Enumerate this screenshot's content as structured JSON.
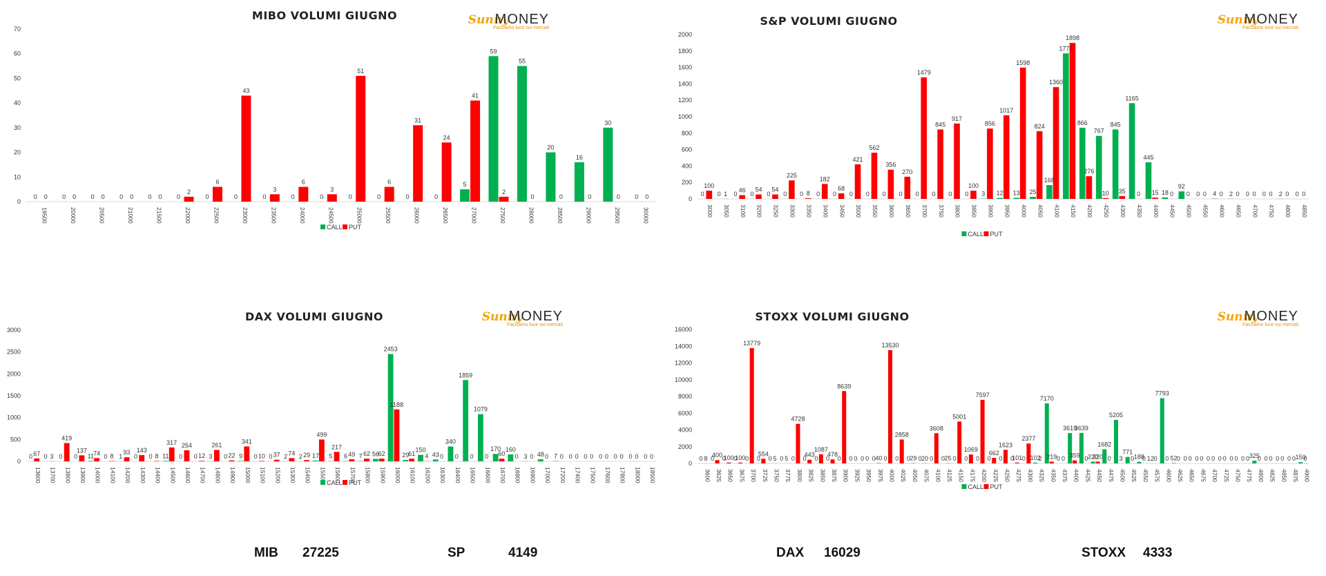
{
  "colors": {
    "call": "#00B050",
    "put": "#FF0000"
  },
  "logo": {
    "word1": "Sunny",
    "word2": "MONEY",
    "tagline": "Facciamo luce sui mercati"
  },
  "legend": {
    "call": "CALL",
    "put": "PUT"
  },
  "footer": [
    {
      "label": "MIB",
      "value": "27225"
    },
    {
      "label": "SP",
      "value": "4149"
    },
    {
      "label": "DAX",
      "value": "16029"
    },
    {
      "label": "STOXX",
      "value": "4333"
    }
  ],
  "chart_data": [
    {
      "type": "bar",
      "title": "MIBO VOLUMI GIUGNO",
      "ylim": [
        0,
        70
      ],
      "yticks": [
        0,
        10,
        20,
        30,
        40,
        50,
        60,
        70
      ],
      "xlabel": "",
      "ylabel": "",
      "grid": false,
      "legend": "bottom",
      "categories": [
        "19500",
        "20000",
        "20500",
        "21000",
        "21500",
        "22000",
        "22500",
        "23000",
        "23500",
        "24000",
        "24500",
        "25000",
        "25500",
        "26000",
        "26500",
        "27000",
        "27500",
        "28000",
        "28500",
        "29000",
        "29500",
        "30000"
      ],
      "series": [
        {
          "name": "CALL",
          "values": [
            0,
            0,
            0,
            0,
            0,
            0,
            0,
            0,
            0,
            0,
            0,
            0,
            0,
            0,
            0,
            5,
            59,
            55,
            20,
            16,
            30,
            0
          ]
        },
        {
          "name": "PUT",
          "values": [
            0,
            0,
            0,
            0,
            0,
            2,
            6,
            43,
            3,
            6,
            3,
            51,
            6,
            31,
            24,
            41,
            2,
            0,
            0,
            0,
            0,
            0
          ]
        }
      ]
    },
    {
      "type": "bar",
      "title": "S&P VOLUMI GIUGNO",
      "ylim": [
        0,
        2000
      ],
      "yticks": [
        0,
        200,
        400,
        600,
        800,
        1000,
        1200,
        1400,
        1600,
        1800,
        2000
      ],
      "xlabel": "",
      "ylabel": "",
      "grid": false,
      "legend": "bottom",
      "categories": [
        "3000",
        "3050",
        "3100",
        "3200",
        "3250",
        "3300",
        "3350",
        "3400",
        "3450",
        "3500",
        "3550",
        "3600",
        "3650",
        "3700",
        "3750",
        "3800",
        "3850",
        "3900",
        "3950",
        "4000",
        "4050",
        "4100",
        "4150",
        "4200",
        "4250",
        "4300",
        "4350",
        "4400",
        "4450",
        "4500",
        "4550",
        "4600",
        "4650",
        "4700",
        "4750",
        "4800",
        "4850"
      ],
      "series": [
        {
          "name": "CALL",
          "values": [
            0,
            0,
            0,
            0,
            0,
            0,
            0,
            0,
            0,
            0,
            0,
            0,
            0,
            0,
            0,
            0,
            0,
            3,
            12,
            13,
            25,
            168,
            1771,
            866,
            767,
            845,
            1165,
            445,
            18,
            92,
            0,
            4,
            2,
            0,
            0,
            2,
            0
          ]
        },
        {
          "name": "PUT",
          "values": [
            100,
            1,
            46,
            54,
            54,
            225,
            8,
            182,
            68,
            421,
            562,
            356,
            270,
            1479,
            845,
            917,
            100,
            856,
            1017,
            1598,
            824,
            1360,
            1898,
            276,
            10,
            35,
            0,
            15,
            0,
            0,
            0,
            0,
            0,
            0,
            0,
            0,
            0
          ]
        }
      ]
    },
    {
      "type": "bar",
      "title": "DAX VOLUMI GIUGNO",
      "ylim": [
        0,
        3000
      ],
      "yticks": [
        0,
        500,
        1000,
        1500,
        2000,
        2500,
        3000
      ],
      "xlabel": "",
      "ylabel": "",
      "grid": false,
      "legend": "bottom",
      "categories": [
        "13600",
        "13700",
        "13800",
        "13900",
        "14000",
        "14100",
        "14200",
        "14300",
        "14400",
        "14500",
        "14600",
        "14700",
        "14800",
        "14900",
        "15000",
        "15100",
        "15200",
        "15300",
        "15400",
        "15500",
        "15600",
        "15700",
        "15800",
        "15900",
        "16000",
        "16100",
        "16200",
        "16300",
        "16400",
        "16500",
        "16600",
        "16700",
        "16800",
        "16900",
        "17000",
        "17200",
        "17400",
        "17500",
        "17600",
        "17800",
        "18000",
        "18500"
      ],
      "series": [
        {
          "name": "CALL",
          "values": [
            0,
            0,
            0,
            0,
            11,
            0,
            1,
            0,
            0,
            11,
            0,
            0,
            3,
            0,
            9,
            0,
            0,
            2,
            2,
            17,
            5,
            6,
            7,
            56,
            2453,
            29,
            150,
            43,
            340,
            1859,
            1079,
            170,
            160,
            3,
            48,
            7,
            0,
            0,
            0,
            0,
            0,
            0
          ]
        },
        {
          "name": "PUT",
          "values": [
            67,
            3,
            419,
            137,
            74,
            8,
            93,
            143,
            8,
            317,
            254,
            12,
            261,
            22,
            341,
            10,
            37,
            74,
            29,
            499,
            217,
            49,
            62,
            62,
            1188,
            61,
            4,
            0,
            0,
            0,
            0,
            60,
            0,
            0,
            0,
            0,
            0,
            0,
            0,
            0,
            0,
            0
          ]
        }
      ]
    },
    {
      "type": "bar",
      "title": "STOXX VOLUMI GIUGNO",
      "ylim": [
        0,
        16000
      ],
      "yticks": [
        0,
        2000,
        4000,
        6000,
        8000,
        10000,
        12000,
        14000,
        16000
      ],
      "xlabel": "",
      "ylabel": "",
      "grid": false,
      "legend": "bottom",
      "categories": [
        "3600",
        "3625",
        "3650",
        "3675",
        "3700",
        "3725",
        "3750",
        "3775",
        "3800",
        "3825",
        "3850",
        "3875",
        "3900",
        "3925",
        "3950",
        "3975",
        "4000",
        "4025",
        "4050",
        "4075",
        "4100",
        "4125",
        "4150",
        "4175",
        "4200",
        "4225",
        "4250",
        "4275",
        "4300",
        "4325",
        "4350",
        "4375",
        "4400",
        "4425",
        "4450",
        "4475",
        "4500",
        "4525",
        "4550",
        "4575",
        "4600",
        "4625",
        "4650",
        "4675",
        "4700",
        "4725",
        "4750",
        "4775",
        "4800",
        "4825",
        "4850",
        "4875",
        "4900"
      ],
      "series": [
        {
          "name": "CALL",
          "values": [
            0,
            0,
            0,
            0,
            0,
            0,
            0,
            0,
            0,
            0,
            0,
            0,
            0,
            0,
            0,
            0,
            0,
            0,
            0,
            0,
            0,
            0,
            0,
            0,
            0,
            0,
            0,
            0,
            0,
            102,
            7170,
            0,
            3619,
            3639,
            220,
            1682,
            5205,
            771,
            188,
            12,
            7793,
            52,
            0,
            0,
            0,
            0,
            0,
            0,
            325,
            0,
            0,
            0,
            150
          ]
        },
        {
          "name": "PUT",
          "values": [
            8,
            400,
            100,
            100,
            13779,
            554,
            5,
            5,
            4728,
            443,
            1087,
            478,
            8639,
            0,
            0,
            40,
            13530,
            2858,
            29,
            20,
            3608,
            25,
            5001,
            1069,
            7597,
            662,
            1623,
            101,
            2377,
            2,
            219,
            0,
            359,
            0,
            220,
            0,
            3,
            0,
            0,
            0,
            0,
            0,
            0,
            0,
            0,
            0,
            0,
            0,
            0,
            0,
            0,
            0,
            0
          ]
        }
      ]
    }
  ]
}
